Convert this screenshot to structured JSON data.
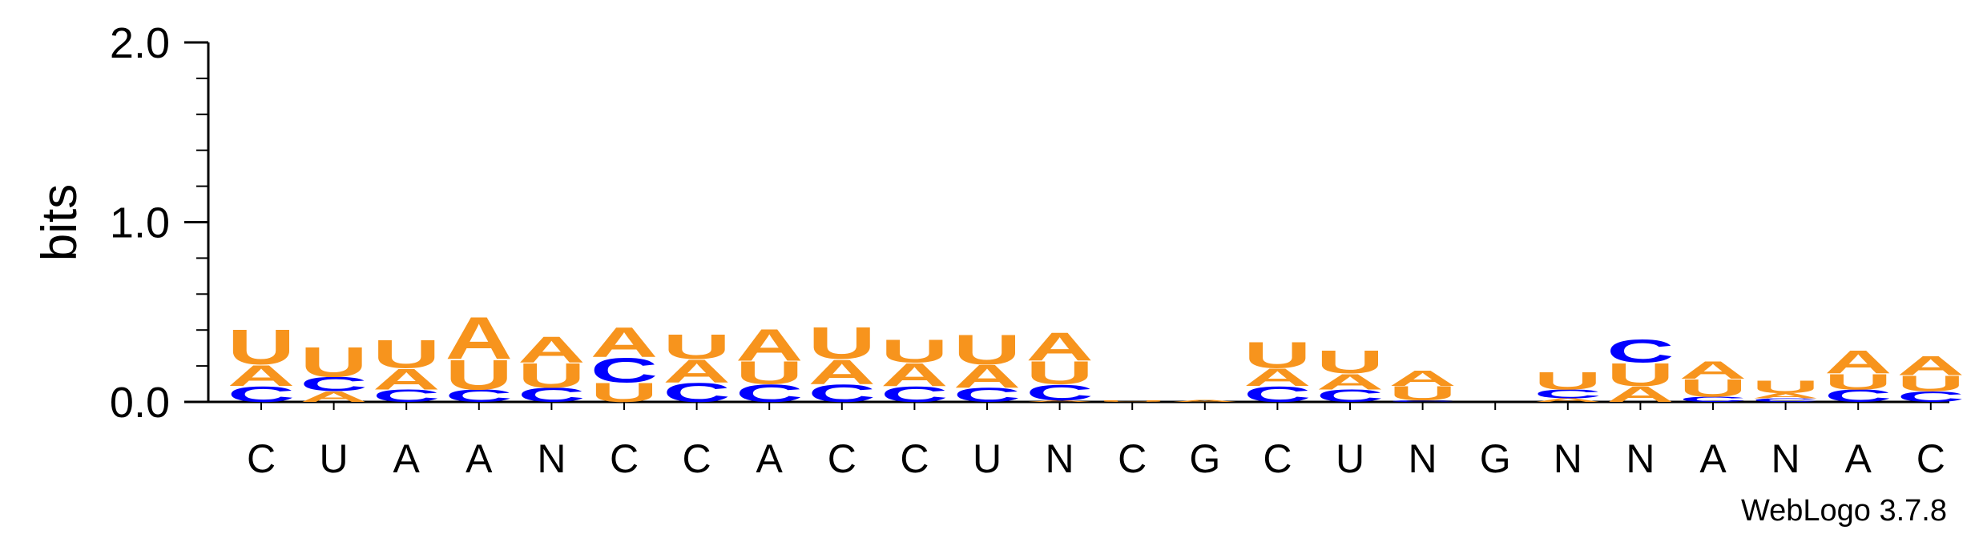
{
  "chart_data": {
    "type": "sequence-logo",
    "ylabel": "bits",
    "ylim": [
      0,
      2.0
    ],
    "yticks": [
      "0.0",
      "1.0",
      "2.0"
    ],
    "positions": [
      "C",
      "U",
      "A",
      "A",
      "N",
      "C",
      "C",
      "A",
      "C",
      "C",
      "U",
      "N",
      "C",
      "G",
      "C",
      "U",
      "N",
      "G",
      "N",
      "N",
      "A",
      "N",
      "A",
      "C"
    ],
    "stacks": [
      [
        {
          "l": "C",
          "h": 0.09
        },
        {
          "l": "A",
          "h": 0.12
        },
        {
          "l": "U",
          "h": 0.2
        }
      ],
      [
        {
          "l": "A",
          "h": 0.06
        },
        {
          "l": "C",
          "h": 0.08
        },
        {
          "l": "U",
          "h": 0.17
        }
      ],
      [
        {
          "l": "C",
          "h": 0.07
        },
        {
          "l": "A",
          "h": 0.12
        },
        {
          "l": "U",
          "h": 0.16
        }
      ],
      [
        {
          "l": "C",
          "h": 0.07
        },
        {
          "l": "U",
          "h": 0.17
        },
        {
          "l": "A",
          "h": 0.24
        }
      ],
      [
        {
          "l": "C",
          "h": 0.08
        },
        {
          "l": "U",
          "h": 0.14
        },
        {
          "l": "A",
          "h": 0.15
        }
      ],
      [
        {
          "l": "U",
          "h": 0.11
        },
        {
          "l": "C",
          "h": 0.14
        },
        {
          "l": "A",
          "h": 0.17
        }
      ],
      [
        {
          "l": "C",
          "h": 0.11
        },
        {
          "l": "A",
          "h": 0.13
        },
        {
          "l": "U",
          "h": 0.14
        }
      ],
      [
        {
          "l": "C",
          "h": 0.1
        },
        {
          "l": "U",
          "h": 0.13
        },
        {
          "l": "A",
          "h": 0.18
        }
      ],
      [
        {
          "l": "C",
          "h": 0.1
        },
        {
          "l": "A",
          "h": 0.14
        },
        {
          "l": "U",
          "h": 0.18
        }
      ],
      [
        {
          "l": "C",
          "h": 0.09
        },
        {
          "l": "A",
          "h": 0.13
        },
        {
          "l": "U",
          "h": 0.13
        }
      ],
      [
        {
          "l": "C",
          "h": 0.08
        },
        {
          "l": "A",
          "h": 0.13
        },
        {
          "l": "U",
          "h": 0.17
        }
      ],
      [
        {
          "l": "A",
          "h": 0.01
        },
        {
          "l": "C",
          "h": 0.09
        },
        {
          "l": "U",
          "h": 0.13
        },
        {
          "l": "A",
          "h": 0.16
        }
      ],
      [
        {
          "l": "U",
          "h": 0.008
        }
      ],
      [
        {
          "l": "A",
          "h": 0.012
        }
      ],
      [
        {
          "l": "C",
          "h": 0.09
        },
        {
          "l": "A",
          "h": 0.1
        },
        {
          "l": "U",
          "h": 0.15
        }
      ],
      [
        {
          "l": "C",
          "h": 0.07
        },
        {
          "l": "A",
          "h": 0.09
        },
        {
          "l": "U",
          "h": 0.13
        }
      ],
      [
        {
          "l": "C",
          "h": 0.01
        },
        {
          "l": "U",
          "h": 0.08
        },
        {
          "l": "A",
          "h": 0.09
        }
      ],
      [],
      [
        {
          "l": "A",
          "h": 0.02
        },
        {
          "l": "C",
          "h": 0.05
        },
        {
          "l": "U",
          "h": 0.1
        }
      ],
      [
        {
          "l": "A",
          "h": 0.09
        },
        {
          "l": "U",
          "h": 0.13
        },
        {
          "l": "C",
          "h": 0.13
        }
      ],
      [
        {
          "l": "C",
          "h": 0.03
        },
        {
          "l": "U",
          "h": 0.1
        },
        {
          "l": "A",
          "h": 0.1
        }
      ],
      [
        {
          "l": "C",
          "h": 0.02
        },
        {
          "l": "A",
          "h": 0.03
        },
        {
          "l": "U",
          "h": 0.07
        }
      ],
      [
        {
          "l": "C",
          "h": 0.07
        },
        {
          "l": "U",
          "h": 0.09
        },
        {
          "l": "A",
          "h": 0.13
        }
      ],
      [
        {
          "l": "C",
          "h": 0.06
        },
        {
          "l": "U",
          "h": 0.09
        },
        {
          "l": "A",
          "h": 0.11
        }
      ]
    ],
    "colors": {
      "A": "#f7941d",
      "U": "#f7941d",
      "C": "#0000ff",
      "G": "#ffa500"
    },
    "grid": false
  },
  "credit": "WebLogo 3.7.8"
}
